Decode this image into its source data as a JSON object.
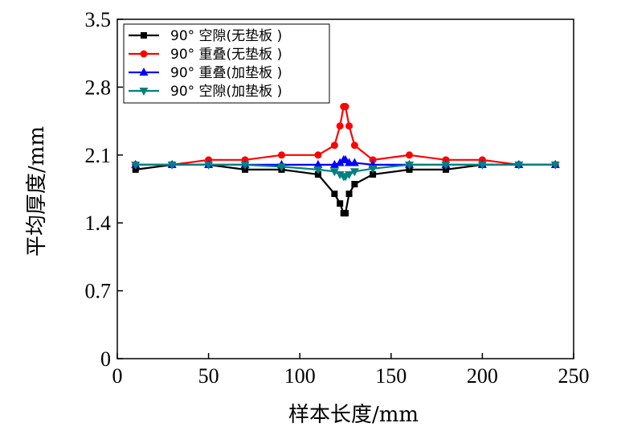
{
  "chart_data": {
    "type": "line",
    "xlabel": "样本长度/mm",
    "ylabel": "平均厚度/mm",
    "xlim": [
      0,
      250
    ],
    "ylim": [
      0,
      3.5
    ],
    "xticks": [
      0,
      50,
      100,
      150,
      200,
      250
    ],
    "yticks": [
      0,
      0.7,
      1.4,
      2.1,
      2.8,
      3.5
    ],
    "xtick_labels": [
      "0",
      "50",
      "100",
      "150",
      "200",
      "250"
    ],
    "ytick_labels": [
      "0",
      "0.7",
      "1.4",
      "2.1",
      "2.8",
      "3.5"
    ],
    "grid": false,
    "legend_position": "top-left",
    "series": [
      {
        "name": "90° 空隙(无垫板 )",
        "color": "#000000",
        "marker": "square",
        "x": [
          10,
          30,
          50,
          70,
          90,
          110,
          119,
          122,
          124,
          125,
          127,
          130,
          140,
          160,
          180,
          200,
          220,
          240
        ],
        "y": [
          1.95,
          2.0,
          2.0,
          1.95,
          1.95,
          1.9,
          1.7,
          1.6,
          1.5,
          1.5,
          1.7,
          1.8,
          1.9,
          1.95,
          1.95,
          2.0,
          2.0,
          2.0
        ]
      },
      {
        "name": "90° 重叠(无垫板 )",
        "color": "#ff0000",
        "marker": "circle",
        "x": [
          10,
          30,
          50,
          70,
          90,
          110,
          119,
          122,
          124,
          125,
          127,
          130,
          140,
          160,
          180,
          200,
          220,
          240
        ],
        "y": [
          2.0,
          2.0,
          2.05,
          2.05,
          2.1,
          2.1,
          2.2,
          2.4,
          2.6,
          2.6,
          2.4,
          2.2,
          2.05,
          2.1,
          2.05,
          2.05,
          2.0,
          2.0
        ]
      },
      {
        "name": "90° 重叠(加垫板 )",
        "color": "#0000ff",
        "marker": "triangle-up",
        "x": [
          10,
          30,
          50,
          70,
          90,
          110,
          119,
          122,
          124,
          125,
          127,
          130,
          140,
          160,
          180,
          200,
          220,
          240
        ],
        "y": [
          2.0,
          2.0,
          2.0,
          2.0,
          2.0,
          2.0,
          2.0,
          2.02,
          2.05,
          2.05,
          2.02,
          2.02,
          2.0,
          2.0,
          2.0,
          2.0,
          2.0,
          2.0
        ]
      },
      {
        "name": "90° 空隙(加垫板 )",
        "color": "#008080",
        "marker": "triangle-down",
        "x": [
          10,
          30,
          50,
          70,
          90,
          110,
          119,
          122,
          124,
          125,
          127,
          130,
          140,
          160,
          180,
          200,
          220,
          240
        ],
        "y": [
          2.0,
          2.0,
          2.0,
          2.0,
          1.98,
          1.95,
          1.93,
          1.9,
          1.88,
          1.88,
          1.9,
          1.93,
          1.96,
          2.0,
          2.0,
          2.0,
          2.0,
          2.0
        ]
      }
    ]
  }
}
